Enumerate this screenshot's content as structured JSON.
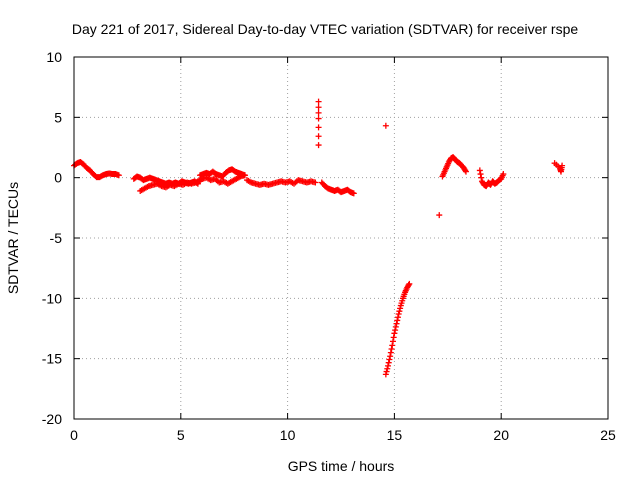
{
  "chart_data": {
    "type": "scatter",
    "title": "Day 221 of 2017, Sidereal Day-to-day VTEC variation (SDTVAR) for receiver rspe",
    "xlabel": "GPS time / hours",
    "ylabel": "SDTVAR / TECUs",
    "xlim": [
      0,
      25
    ],
    "ylim": [
      -20,
      10
    ],
    "xticks": [
      "0",
      "5",
      "10",
      "15",
      "20",
      "25"
    ],
    "yticks": [
      "-20",
      "-15",
      "-10",
      "-5",
      "0",
      "5",
      "10"
    ],
    "grid": true,
    "marker": "+",
    "color": "#ff0000",
    "segments": [
      {
        "x": [
          0.0,
          0.15,
          0.3,
          0.45,
          0.6,
          0.75,
          0.9,
          1.05,
          1.2,
          1.35,
          1.5,
          1.65,
          1.8,
          1.95,
          2.1
        ],
        "y": [
          1.0,
          1.2,
          1.3,
          1.1,
          0.8,
          0.6,
          0.3,
          0.05,
          0.05,
          0.2,
          0.3,
          0.35,
          0.3,
          0.3,
          0.2
        ]
      },
      {
        "x": [
          2.8,
          2.95,
          3.1,
          3.25,
          3.4,
          3.55,
          3.7,
          3.85,
          4.0,
          4.15,
          4.3,
          4.45,
          4.6,
          4.75,
          4.9,
          5.05,
          5.2,
          5.35,
          5.5,
          5.65,
          5.8
        ],
        "y": [
          -0.1,
          0.1,
          0.0,
          -0.2,
          -0.1,
          0.0,
          -0.1,
          -0.2,
          -0.3,
          -0.4,
          -0.5,
          -0.4,
          -0.5,
          -0.4,
          -0.5,
          -0.3,
          -0.4,
          -0.5,
          -0.4,
          -0.3,
          -0.5
        ]
      },
      {
        "x": [
          3.1,
          3.3,
          3.5,
          3.7,
          3.9,
          4.1,
          4.3,
          4.5,
          4.7,
          4.9,
          5.1,
          5.3,
          5.5,
          5.7,
          5.9
        ],
        "y": [
          -1.1,
          -0.9,
          -0.7,
          -0.6,
          -0.5,
          -0.7,
          -0.8,
          -0.6,
          -0.7,
          -0.5,
          -0.6,
          -0.4,
          -0.5,
          -0.4,
          -0.3
        ]
      },
      {
        "x": [
          5.9,
          6.05,
          6.2,
          6.35,
          6.5,
          6.65,
          6.8,
          6.95,
          7.1,
          7.25,
          7.4,
          7.55,
          7.7,
          7.85,
          8.0
        ],
        "y": [
          0.2,
          0.3,
          0.4,
          0.3,
          0.5,
          0.3,
          0.2,
          0.1,
          0.4,
          0.6,
          0.7,
          0.5,
          0.4,
          0.3,
          0.2
        ]
      },
      {
        "x": [
          5.8,
          6.0,
          6.2,
          6.4,
          6.6,
          6.8,
          7.0,
          7.2,
          7.4,
          7.6,
          7.8,
          8.0
        ],
        "y": [
          -0.3,
          -0.1,
          0.0,
          -0.2,
          -0.1,
          -0.4,
          -0.3,
          -0.5,
          -0.3,
          -0.1,
          0.1,
          0.2
        ]
      },
      {
        "x": [
          8.1,
          8.3,
          8.5,
          8.7,
          8.9,
          9.1,
          9.3,
          9.5,
          9.7,
          9.9,
          10.1,
          10.3,
          10.5,
          10.7,
          10.9,
          11.1,
          11.3
        ],
        "y": [
          -0.2,
          -0.4,
          -0.5,
          -0.6,
          -0.5,
          -0.6,
          -0.5,
          -0.4,
          -0.3,
          -0.4,
          -0.3,
          -0.5,
          -0.2,
          -0.3,
          -0.4,
          -0.3,
          -0.4
        ]
      },
      {
        "x": [
          11.45,
          11.45,
          11.45
        ],
        "y": [
          6.3,
          4.9,
          2.7
        ]
      },
      {
        "x": [
          11.6,
          11.75,
          11.9,
          12.05,
          12.2,
          12.35,
          12.5,
          12.65,
          12.8,
          12.95,
          13.1
        ],
        "y": [
          -0.4,
          -0.7,
          -0.9,
          -1.0,
          -1.1,
          -1.0,
          -1.2,
          -1.1,
          -1.0,
          -1.2,
          -1.3
        ]
      },
      {
        "x": [
          14.6
        ],
        "y": [
          4.3
        ]
      },
      {
        "x": [
          14.6,
          14.7,
          14.8,
          14.9,
          15.0,
          15.1,
          15.2,
          15.3,
          15.4,
          15.5,
          15.6,
          15.7
        ],
        "y": [
          -16.3,
          -15.6,
          -14.8,
          -13.9,
          -12.9,
          -12.1,
          -11.3,
          -10.6,
          -10.0,
          -9.5,
          -9.1,
          -8.8
        ]
      },
      {
        "x": [
          17.1
        ],
        "y": [
          -3.1
        ]
      },
      {
        "x": [
          17.25,
          17.35,
          17.45,
          17.55,
          17.65,
          17.75,
          17.85,
          17.95,
          18.05,
          18.15,
          18.25,
          18.35
        ],
        "y": [
          0.1,
          0.5,
          0.9,
          1.3,
          1.6,
          1.7,
          1.5,
          1.3,
          1.2,
          1.0,
          0.8,
          0.5
        ]
      },
      {
        "x": [
          19.0,
          19.1,
          19.2,
          19.3,
          19.4,
          19.5,
          19.6,
          19.7,
          19.8,
          19.9,
          20.0,
          20.1
        ],
        "y": [
          0.6,
          -0.3,
          -0.6,
          -0.7,
          -0.4,
          -0.6,
          -0.3,
          -0.5,
          -0.4,
          -0.2,
          -0.1,
          0.3
        ]
      },
      {
        "x": [
          22.5,
          22.75,
          22.8,
          22.85
        ],
        "y": [
          1.2,
          0.8,
          0.5,
          1.0
        ]
      }
    ]
  }
}
